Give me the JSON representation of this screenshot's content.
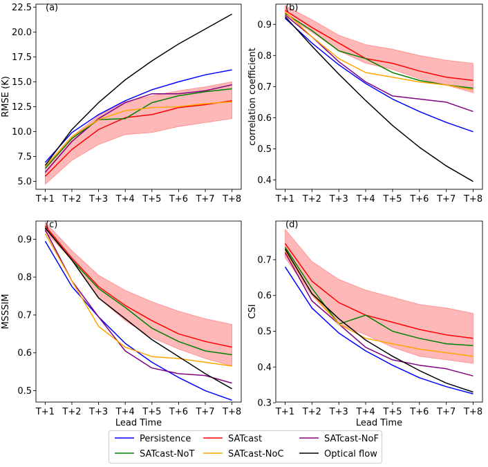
{
  "chart_data": [
    {
      "type": "line",
      "panel": "(a)",
      "categories": [
        "T+1",
        "T+2",
        "T+3",
        "T+4",
        "T+5",
        "T+6",
        "T+7",
        "T+8"
      ],
      "ylabel": "RMSE (K)",
      "xlabel": "",
      "ylim": [
        4.2,
        22.8
      ],
      "yticks": [
        5.0,
        7.5,
        10.0,
        12.5,
        15.0,
        17.5,
        20.0,
        22.5
      ],
      "ytick_labels": [
        "5.0",
        "7.5",
        "10.0",
        "12.5",
        "15.0",
        "17.5",
        "20.0",
        "22.5"
      ],
      "band": {
        "lower": [
          4.7,
          7.1,
          8.7,
          9.7,
          9.9,
          10.5,
          10.9,
          11.3
        ],
        "upper": [
          6.4,
          9.5,
          11.6,
          13.0,
          13.6,
          14.1,
          14.5,
          15.0
        ]
      },
      "series": [
        {
          "name": "Persistence",
          "color": "#0000ff",
          "values": [
            6.9,
            9.9,
            11.7,
            13.1,
            14.2,
            15.0,
            15.7,
            16.2
          ]
        },
        {
          "name": "SATcast",
          "color": "#ff0000",
          "values": [
            5.5,
            8.2,
            10.2,
            11.4,
            11.7,
            12.4,
            12.7,
            13.1
          ]
        },
        {
          "name": "SATcast-NoF",
          "color": "#800080",
          "values": [
            5.9,
            9.0,
            11.3,
            12.9,
            13.8,
            13.8,
            14.1,
            14.7
          ]
        },
        {
          "name": "SATcast-NoT",
          "color": "#008000",
          "values": [
            6.3,
            9.3,
            11.2,
            11.3,
            12.9,
            13.6,
            14.0,
            14.3
          ]
        },
        {
          "name": "SATcast-NoC",
          "color": "#ffa500",
          "values": [
            6.5,
            9.5,
            11.2,
            12.1,
            12.4,
            12.5,
            12.8,
            13.0
          ]
        },
        {
          "name": "Optical flow",
          "color": "#000000",
          "values": [
            6.6,
            10.2,
            12.9,
            15.2,
            17.1,
            18.8,
            20.3,
            21.8
          ]
        }
      ]
    },
    {
      "type": "line",
      "panel": "(b)",
      "categories": [
        "T+1",
        "T+2",
        "T+3",
        "T+4",
        "T+5",
        "T+6",
        "T+7",
        "T+8"
      ],
      "ylabel": "correlation coefficient",
      "xlabel": "",
      "ylim": [
        0.37,
        0.965
      ],
      "yticks": [
        0.4,
        0.5,
        0.6,
        0.7,
        0.8,
        0.9
      ],
      "ytick_labels": [
        "0.4",
        "0.5",
        "0.6",
        "0.7",
        "0.8",
        "0.9"
      ],
      "band": {
        "lower": [
          0.93,
          0.875,
          0.815,
          0.775,
          0.755,
          0.725,
          0.705,
          0.68
        ],
        "upper": [
          0.96,
          0.915,
          0.865,
          0.835,
          0.82,
          0.8,
          0.785,
          0.775
        ]
      },
      "series": [
        {
          "name": "Persistence",
          "color": "#0000ff",
          "values": [
            0.92,
            0.84,
            0.77,
            0.71,
            0.66,
            0.62,
            0.585,
            0.555
          ]
        },
        {
          "name": "SATcast",
          "color": "#ff0000",
          "values": [
            0.945,
            0.89,
            0.84,
            0.79,
            0.775,
            0.75,
            0.73,
            0.72
          ]
        },
        {
          "name": "SATcast-NoF",
          "color": "#800080",
          "values": [
            0.93,
            0.86,
            0.78,
            0.715,
            0.67,
            0.66,
            0.65,
            0.62
          ]
        },
        {
          "name": "SATcast-NoT",
          "color": "#008000",
          "values": [
            0.935,
            0.88,
            0.815,
            0.79,
            0.745,
            0.72,
            0.705,
            0.695
          ]
        },
        {
          "name": "SATcast-NoC",
          "color": "#ffa500",
          "values": [
            0.94,
            0.86,
            0.79,
            0.745,
            0.73,
            0.715,
            0.705,
            0.69
          ]
        },
        {
          "name": "Optical flow",
          "color": "#000000",
          "values": [
            0.925,
            0.83,
            0.74,
            0.655,
            0.575,
            0.505,
            0.445,
            0.395
          ]
        }
      ]
    },
    {
      "type": "line",
      "panel": "(c)",
      "categories": [
        "T+1",
        "T+2",
        "T+3",
        "T+4",
        "T+5",
        "T+6",
        "T+7",
        "T+8"
      ],
      "ylabel": "MSSSIM",
      "xlabel": "Lead Time",
      "ylim": [
        0.47,
        0.948
      ],
      "yticks": [
        0.5,
        0.6,
        0.7,
        0.8,
        0.9
      ],
      "ytick_labels": [
        "0.5",
        "0.6",
        "0.7",
        "0.8",
        "0.9"
      ],
      "band": {
        "lower": [
          0.92,
          0.845,
          0.745,
          0.685,
          0.64,
          0.61,
          0.585,
          0.565
        ],
        "upper": [
          0.945,
          0.87,
          0.805,
          0.765,
          0.735,
          0.71,
          0.69,
          0.675
        ]
      },
      "series": [
        {
          "name": "Persistence",
          "color": "#0000ff",
          "values": [
            0.895,
            0.775,
            0.695,
            0.625,
            0.575,
            0.535,
            0.5,
            0.475
          ]
        },
        {
          "name": "SATcast",
          "color": "#ff0000",
          "values": [
            0.935,
            0.85,
            0.775,
            0.725,
            0.685,
            0.65,
            0.63,
            0.615
          ]
        },
        {
          "name": "SATcast-NoF",
          "color": "#800080",
          "values": [
            0.925,
            0.79,
            0.695,
            0.605,
            0.56,
            0.545,
            0.54,
            0.52
          ]
        },
        {
          "name": "SATcast-NoT",
          "color": "#008000",
          "values": [
            0.93,
            0.845,
            0.77,
            0.72,
            0.665,
            0.63,
            0.605,
            0.595
          ]
        },
        {
          "name": "SATcast-NoC",
          "color": "#ffa500",
          "values": [
            0.915,
            0.79,
            0.67,
            0.615,
            0.59,
            0.585,
            0.575,
            0.565
          ]
        },
        {
          "name": "Optical flow",
          "color": "#000000",
          "values": [
            0.93,
            0.845,
            0.745,
            0.69,
            0.635,
            0.59,
            0.545,
            0.505
          ]
        }
      ]
    },
    {
      "type": "line",
      "panel": "(d)",
      "categories": [
        "T+1",
        "T+2",
        "T+3",
        "T+4",
        "T+5",
        "T+6",
        "T+7",
        "T+8"
      ],
      "ylabel": "CSI",
      "xlabel": "Lead Time",
      "ylim": [
        0.302,
        0.808
      ],
      "yticks": [
        0.3,
        0.4,
        0.5,
        0.6,
        0.7
      ],
      "ytick_labels": [
        "0.3",
        "0.4",
        "0.5",
        "0.6",
        "0.7"
      ],
      "band": {
        "lower": [
          0.705,
          0.6,
          0.52,
          0.49,
          0.455,
          0.43,
          0.42,
          0.41
        ],
        "upper": [
          0.785,
          0.695,
          0.645,
          0.615,
          0.595,
          0.575,
          0.565,
          0.55
        ]
      },
      "series": [
        {
          "name": "Persistence",
          "color": "#0000ff",
          "values": [
            0.68,
            0.565,
            0.495,
            0.445,
            0.405,
            0.37,
            0.345,
            0.325
          ]
        },
        {
          "name": "SATcast",
          "color": "#ff0000",
          "values": [
            0.745,
            0.64,
            0.58,
            0.545,
            0.525,
            0.505,
            0.49,
            0.48
          ]
        },
        {
          "name": "SATcast-NoF",
          "color": "#800080",
          "values": [
            0.72,
            0.585,
            0.52,
            0.455,
            0.42,
            0.405,
            0.395,
            0.375
          ]
        },
        {
          "name": "SATcast-NoT",
          "color": "#008000",
          "values": [
            0.735,
            0.62,
            0.52,
            0.545,
            0.5,
            0.48,
            0.465,
            0.46
          ]
        },
        {
          "name": "SATcast-NoC",
          "color": "#ffa500",
          "values": [
            0.725,
            0.605,
            0.52,
            0.48,
            0.465,
            0.45,
            0.44,
            0.43
          ]
        },
        {
          "name": "Optical flow",
          "color": "#000000",
          "values": [
            0.73,
            0.605,
            0.535,
            0.475,
            0.43,
            0.39,
            0.355,
            0.33
          ]
        }
      ]
    }
  ],
  "legend": {
    "entries": [
      {
        "label": "Persistence",
        "color": "#0000ff"
      },
      {
        "label": "SATcast",
        "color": "#ff0000"
      },
      {
        "label": "SATcast-NoF",
        "color": "#800080"
      },
      {
        "label": "SATcast-NoT",
        "color": "#008000"
      },
      {
        "label": "SATcast-NoC",
        "color": "#ffa500"
      },
      {
        "label": "Optical flow",
        "color": "#000000"
      }
    ]
  },
  "colors": {
    "band_fill": "#ff0000"
  }
}
